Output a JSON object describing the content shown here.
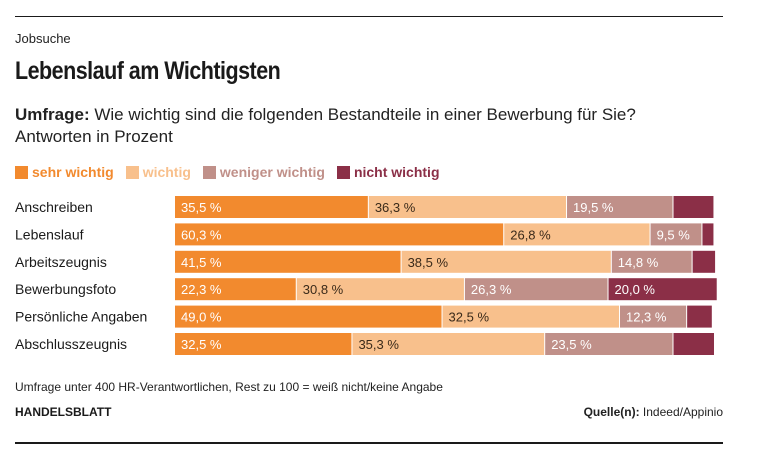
{
  "header": {
    "kicker": "Jobsuche",
    "title": "Lebenslauf am Wichtigsten",
    "subtitle_bold": "Umfrage:",
    "subtitle_line1": " Wie wichtig sind die folgenden Bestandteile in einer Bewerbung für Sie?",
    "subtitle_line2": "Antworten in Prozent"
  },
  "chart_data": {
    "type": "bar",
    "orientation": "horizontal",
    "stacked": true,
    "categories": [
      "Anschreiben",
      "Lebenslauf",
      "Arbeitszeugnis",
      "Bewerbungsfoto",
      "Persönliche Angaben",
      "Abschlusszeugnis"
    ],
    "series": [
      {
        "name": "sehr wichtig",
        "color": "#f28a2e",
        "values": [
          35.5,
          60.3,
          41.5,
          22.3,
          49.0,
          32.5
        ],
        "labels": [
          "35,5 %",
          "60,3 %",
          "41,5 %",
          "22,3 %",
          "49,0 %",
          "32,5 %"
        ]
      },
      {
        "name": "wichtig",
        "color": "#f8c08c",
        "values": [
          36.3,
          26.8,
          38.5,
          30.8,
          32.5,
          35.3
        ],
        "labels": [
          "36,3 %",
          "26,8 %",
          "38,5 %",
          "30,8 %",
          "32,5 %",
          "35,3 %"
        ]
      },
      {
        "name": "weniger wichtig",
        "color": "#c09089",
        "values": [
          19.5,
          9.5,
          14.8,
          26.3,
          12.3,
          23.5
        ],
        "labels": [
          "19,5 %",
          "9,5 %",
          "14,8 %",
          "26,3 %",
          "12,3 %",
          "23,5 %"
        ]
      },
      {
        "name": "nicht wichtig",
        "color": "#8b2f47",
        "values": [
          7.5,
          2.2,
          4.3,
          20.0,
          4.7,
          7.6
        ],
        "labels": [
          "",
          "",
          "",
          "20,0 %",
          "",
          ""
        ]
      }
    ],
    "xlim": [
      0,
      100
    ]
  },
  "footer": {
    "note": "Umfrage unter 400 HR-Verantwortlichen, Rest zu 100 = weiß nicht/keine Angabe",
    "brand": "HANDELSBLATT",
    "source_label": "Quelle(n):",
    "source_value": " Indeed/Appinio"
  }
}
